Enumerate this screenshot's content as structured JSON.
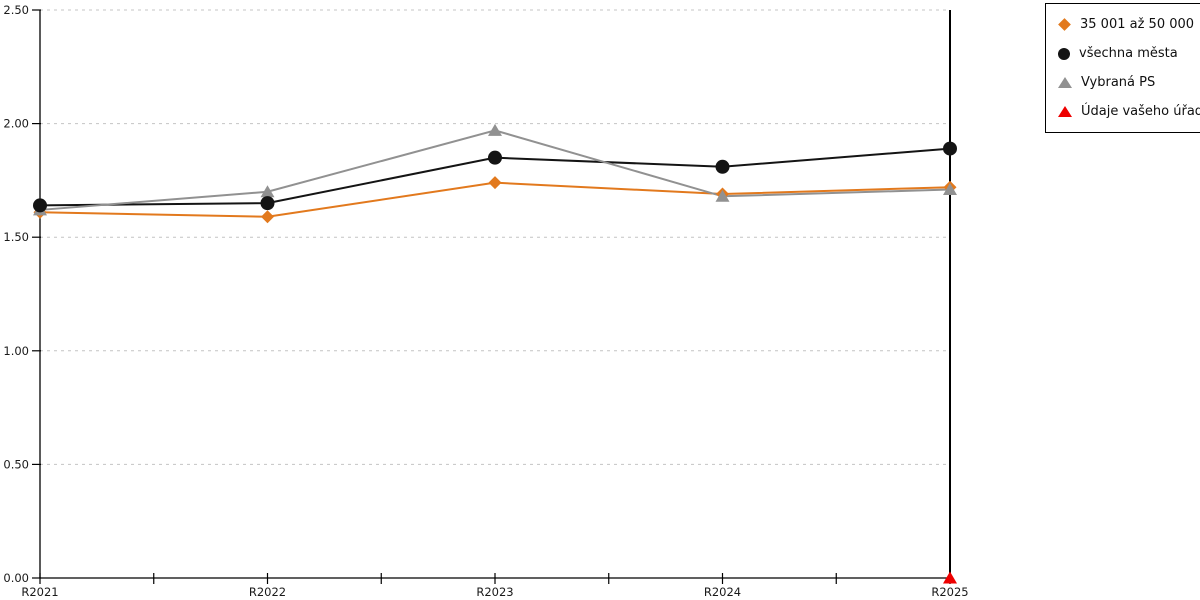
{
  "chart_data": {
    "type": "line",
    "title": "",
    "xlabel": "",
    "ylabel": "",
    "categories": [
      "R2021",
      "R2022",
      "R2023",
      "R2024",
      "R2025"
    ],
    "series": [
      {
        "name": "35 001 až 50 000",
        "marker": "diamond",
        "color": "#E2791D",
        "values": [
          1.61,
          1.59,
          1.74,
          1.69,
          1.72
        ]
      },
      {
        "name": "všechna města",
        "marker": "circle",
        "color": "#141414",
        "values": [
          1.64,
          1.65,
          1.85,
          1.81,
          1.89
        ]
      },
      {
        "name": "Vybraná PS",
        "marker": "triangle",
        "color": "#919191",
        "values": [
          1.62,
          1.7,
          1.97,
          1.68,
          1.71
        ]
      },
      {
        "name": "Údaje vašeho úřadu",
        "marker": "triangle",
        "color": "#EE0000",
        "values": [
          null,
          null,
          null,
          null,
          0.0
        ]
      }
    ],
    "ylim": [
      0,
      2.5
    ],
    "y_ticks": [
      0.0,
      0.5,
      1.0,
      1.5,
      2.0,
      2.5
    ],
    "y_tick_labels": [
      "0.00",
      "0.50",
      "1.00",
      "1.50",
      "2.00",
      "2.50"
    ],
    "x_minor_ticks_between_labels": 1,
    "grid": "horizontal-dashed",
    "grid_color": "#c4c4c4",
    "axis_color": "#000000",
    "highlight_vertical_line_at": "R2025",
    "legend_position": "top-right"
  }
}
